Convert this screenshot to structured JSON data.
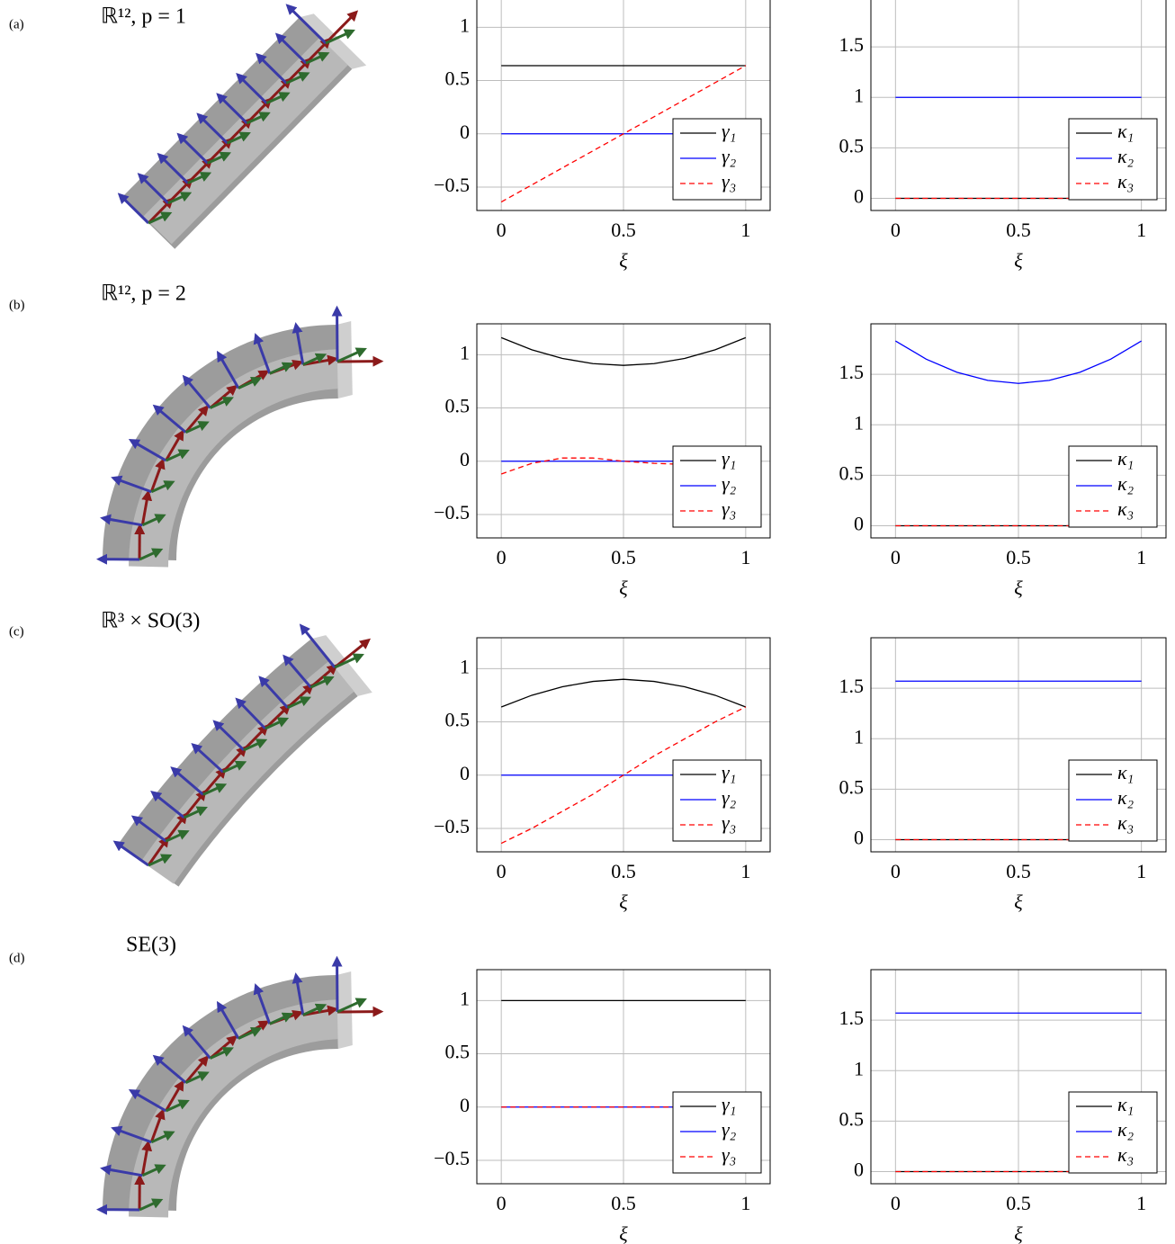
{
  "panels": [
    {
      "label": "(a)",
      "title": "ℝ¹², p = 1"
    },
    {
      "label": "(b)",
      "title": "ℝ¹², p = 2"
    },
    {
      "label": "(c)",
      "title": "ℝ³ × SO(3)"
    },
    {
      "label": "(d)",
      "title": "SE(3)"
    }
  ],
  "chart_data": [
    {
      "type": "line",
      "x_label": "ξ",
      "x": [
        0,
        1
      ],
      "xlim": [
        -0.1,
        1.1
      ],
      "ylim": [
        -0.72,
        1.29
      ],
      "xticks": [
        0,
        0.5,
        1
      ],
      "yticks": [
        {
          "value": -0.5,
          "label": "−0.5"
        },
        0,
        0.5,
        1
      ],
      "grid": true,
      "legend": "lower right",
      "series": [
        {
          "name": "γ₁",
          "color": "#000000",
          "linestyle": "solid",
          "values": [
            0.64,
            0.64
          ]
        },
        {
          "name": "γ₂",
          "color": "#0000ff",
          "linestyle": "solid",
          "values": [
            0,
            0
          ]
        },
        {
          "name": "γ₃",
          "color": "#ff0000",
          "linestyle": "dashed",
          "values": [
            -0.64,
            0.64
          ]
        }
      ]
    },
    {
      "type": "line",
      "x_label": "ξ",
      "x": [
        0,
        1
      ],
      "xlim": [
        -0.1,
        1.1
      ],
      "ylim": [
        -0.12,
        2.0
      ],
      "xticks": [
        0,
        0.5,
        1
      ],
      "yticks": [
        0,
        0.5,
        1,
        1.5
      ],
      "grid": true,
      "legend": "lower right",
      "series": [
        {
          "name": "κ₁",
          "color": "#000000",
          "linestyle": "solid",
          "values": [
            0,
            0
          ]
        },
        {
          "name": "κ₂",
          "color": "#0000ff",
          "linestyle": "solid",
          "values": [
            1,
            1
          ]
        },
        {
          "name": "κ₃",
          "color": "#ff0000",
          "linestyle": "dashed",
          "values": [
            0,
            0
          ]
        }
      ]
    },
    {
      "type": "line",
      "x_label": "ξ",
      "x": [
        0,
        0.125,
        0.25,
        0.375,
        0.5,
        0.625,
        0.75,
        0.875,
        1
      ],
      "xlim": [
        -0.1,
        1.1
      ],
      "ylim": [
        -0.72,
        1.29
      ],
      "xticks": [
        0,
        0.5,
        1
      ],
      "yticks": [
        {
          "value": -0.5,
          "label": "−0.5"
        },
        0,
        0.5,
        1
      ],
      "grid": true,
      "legend": "lower right",
      "series": [
        {
          "name": "γ₁",
          "color": "#000000",
          "linestyle": "solid",
          "values": [
            1.16,
            1.046,
            0.965,
            0.916,
            0.9,
            0.916,
            0.965,
            1.046,
            1.16
          ]
        },
        {
          "name": "γ₂",
          "color": "#0000ff",
          "linestyle": "solid",
          "values": [
            0,
            0,
            0,
            0,
            0,
            0,
            0,
            0,
            0
          ]
        },
        {
          "name": "γ₃",
          "color": "#ff0000",
          "linestyle": "dashed",
          "values": [
            -0.12,
            -0.02,
            0.03,
            0.03,
            0,
            -0.02,
            -0.03,
            -0.05,
            -0.1
          ]
        }
      ]
    },
    {
      "type": "line",
      "x_label": "ξ",
      "x": [
        0,
        0.125,
        0.25,
        0.375,
        0.5,
        0.625,
        0.75,
        0.875,
        1
      ],
      "xlim": [
        -0.1,
        1.1
      ],
      "ylim": [
        -0.12,
        2.0
      ],
      "xticks": [
        0,
        0.5,
        1
      ],
      "yticks": [
        0,
        0.5,
        1,
        1.5
      ],
      "grid": true,
      "legend": "lower right",
      "series": [
        {
          "name": "κ₁",
          "color": "#000000",
          "linestyle": "solid",
          "values": [
            0,
            0,
            0,
            0,
            0,
            0,
            0,
            0,
            0
          ]
        },
        {
          "name": "κ₂",
          "color": "#0000ff",
          "linestyle": "solid",
          "values": [
            1.83,
            1.65,
            1.52,
            1.44,
            1.41,
            1.44,
            1.52,
            1.65,
            1.83
          ]
        },
        {
          "name": "κ₃",
          "color": "#ff0000",
          "linestyle": "dashed",
          "values": [
            0,
            0,
            0,
            0,
            0,
            0,
            0,
            0,
            0
          ]
        }
      ]
    },
    {
      "type": "line",
      "x_label": "ξ",
      "x": [
        0,
        0.125,
        0.25,
        0.375,
        0.5,
        0.625,
        0.75,
        0.875,
        1
      ],
      "xlim": [
        -0.1,
        1.1
      ],
      "ylim": [
        -0.72,
        1.29
      ],
      "xticks": [
        0,
        0.5,
        1
      ],
      "yticks": [
        {
          "value": -0.5,
          "label": "−0.5"
        },
        0,
        0.5,
        1
      ],
      "grid": true,
      "legend": "lower right",
      "series": [
        {
          "name": "γ₁",
          "color": "#000000",
          "linestyle": "solid",
          "values": [
            0.64,
            0.75,
            0.83,
            0.88,
            0.9,
            0.88,
            0.83,
            0.75,
            0.64
          ]
        },
        {
          "name": "γ₂",
          "color": "#0000ff",
          "linestyle": "solid",
          "values": [
            0,
            0,
            0,
            0,
            0,
            0,
            0,
            0,
            0
          ]
        },
        {
          "name": "γ₃",
          "color": "#ff0000",
          "linestyle": "dashed",
          "values": [
            -0.64,
            -0.5,
            -0.34,
            -0.18,
            0,
            0.18,
            0.34,
            0.5,
            0.64
          ]
        }
      ]
    },
    {
      "type": "line",
      "x_label": "ξ",
      "x": [
        0,
        1
      ],
      "xlim": [
        -0.1,
        1.1
      ],
      "ylim": [
        -0.12,
        2.0
      ],
      "xticks": [
        0,
        0.5,
        1
      ],
      "yticks": [
        0,
        0.5,
        1,
        1.5
      ],
      "grid": true,
      "legend": "lower right",
      "series": [
        {
          "name": "κ₁",
          "color": "#000000",
          "linestyle": "solid",
          "values": [
            0,
            0
          ]
        },
        {
          "name": "κ₂",
          "color": "#0000ff",
          "linestyle": "solid",
          "values": [
            1.57,
            1.57
          ]
        },
        {
          "name": "κ₃",
          "color": "#ff0000",
          "linestyle": "dashed",
          "values": [
            0,
            0
          ]
        }
      ]
    },
    {
      "type": "line",
      "x_label": "ξ",
      "x": [
        0,
        1
      ],
      "xlim": [
        -0.1,
        1.1
      ],
      "ylim": [
        -0.72,
        1.29
      ],
      "xticks": [
        0,
        0.5,
        1
      ],
      "yticks": [
        {
          "value": -0.5,
          "label": "−0.5"
        },
        0,
        0.5,
        1
      ],
      "grid": true,
      "legend": "lower right",
      "series": [
        {
          "name": "γ₁",
          "color": "#000000",
          "linestyle": "solid",
          "values": [
            1,
            1
          ]
        },
        {
          "name": "γ₂",
          "color": "#0000ff",
          "linestyle": "solid",
          "values": [
            0,
            0
          ]
        },
        {
          "name": "γ₃",
          "color": "#ff0000",
          "linestyle": "dashed",
          "values": [
            0,
            0
          ]
        }
      ]
    },
    {
      "type": "line",
      "x_label": "ξ",
      "x": [
        0,
        1
      ],
      "xlim": [
        -0.1,
        1.1
      ],
      "ylim": [
        -0.12,
        2.0
      ],
      "xticks": [
        0,
        0.5,
        1
      ],
      "yticks": [
        0,
        0.5,
        1,
        1.5
      ],
      "grid": true,
      "legend": "lower right",
      "series": [
        {
          "name": "κ₁",
          "color": "#000000",
          "linestyle": "solid",
          "values": [
            0,
            0
          ]
        },
        {
          "name": "κ₂",
          "color": "#0000ff",
          "linestyle": "solid",
          "values": [
            1.57,
            1.57
          ]
        },
        {
          "name": "κ₃",
          "color": "#ff0000",
          "linestyle": "dashed",
          "values": [
            0,
            0
          ]
        }
      ]
    }
  ]
}
